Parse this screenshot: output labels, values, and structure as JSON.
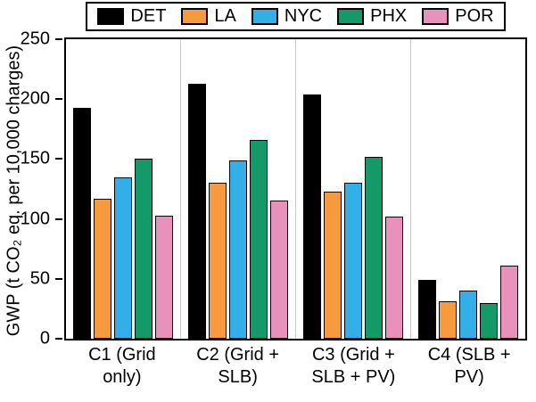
{
  "chart_data": {
    "type": "bar",
    "title": "",
    "xlabel": "",
    "ylabel": "GWP (t CO₂ eq. per 10,000 charges)",
    "ylim": [
      0,
      250
    ],
    "yticks": [
      0,
      50,
      100,
      150,
      200,
      250
    ],
    "grid": false,
    "legend_position": "top",
    "categories": [
      "C1 (Grid only)",
      "C2 (Grid + SLB)",
      "C3 (Grid + SLB + PV)",
      "C4 (SLB + PV)"
    ],
    "category_labels_two_line": [
      [
        "C1 (Grid",
        "only)"
      ],
      [
        "C2 (Grid +",
        "SLB)"
      ],
      [
        "C3 (Grid +",
        "SLB + PV)"
      ],
      [
        "C4 (SLB +",
        "PV)"
      ]
    ],
    "series": [
      {
        "name": "DET",
        "color": "#000000",
        "values": [
          193,
          213,
          204,
          49
        ]
      },
      {
        "name": "LA",
        "color": "#F79A3D",
        "values": [
          117,
          130,
          123,
          31
        ]
      },
      {
        "name": "NYC",
        "color": "#33AEE6",
        "values": [
          135,
          149,
          130,
          40
        ]
      },
      {
        "name": "PHX",
        "color": "#149A68",
        "values": [
          150,
          166,
          152,
          30
        ]
      },
      {
        "name": "POR",
        "color": "#E891BC",
        "values": [
          103,
          115,
          102,
          61
        ]
      }
    ]
  }
}
